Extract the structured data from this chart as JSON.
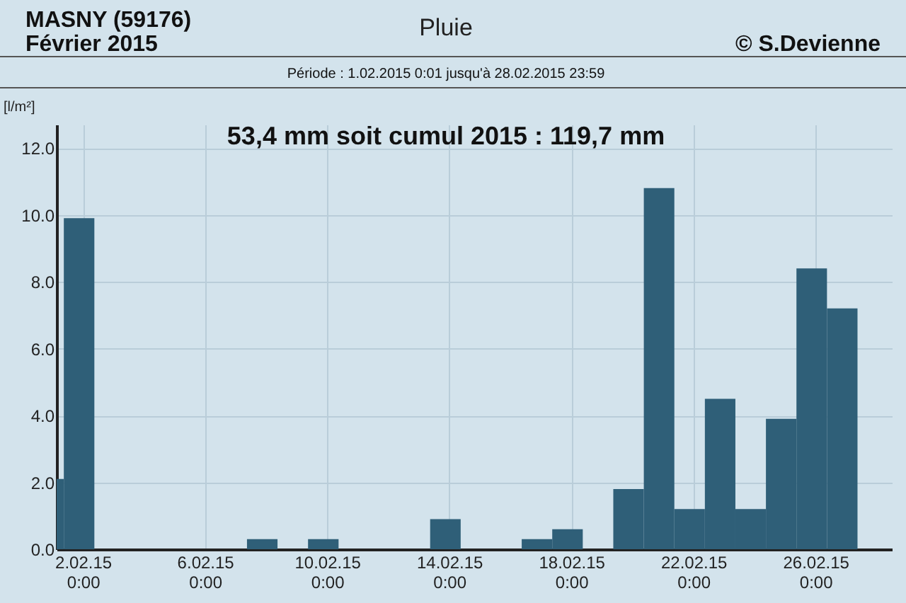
{
  "chart_data": {
    "type": "histogram",
    "title": "Pluie",
    "ylabel": "[l/m²]",
    "annotations": [
      "MASNY (59176)",
      "Février  2015",
      "© S.Devienne",
      "Période :  1.02.2015   0:01   jusqu'à  28.02.2015   23:59",
      "53,4 mm  soit cumul 2015 : 119,7 mm"
    ],
    "bins": [
      "2015-02-01T03:20",
      "2015-02-01T09:00",
      "2015-02-02T09:00",
      "2015-02-07T09:00",
      "2015-02-08T09:00",
      "2015-02-09T09:00",
      "2015-02-10T09:00",
      "2015-02-13T09:00",
      "2015-02-14T09:00",
      "2015-02-16T09:00",
      "2015-02-17T09:00",
      "2015-02-18T09:00",
      "2015-02-19T09:00",
      "2015-02-20T09:00",
      "2015-02-21T09:00",
      "2015-02-22T09:00",
      "2015-02-23T09:00",
      "2015-02-24T09:00",
      "2015-02-25T09:00",
      "2015-02-26T09:00",
      "2015-02-27T09:00"
    ],
    "values": [
      2.1,
      9.9,
      0,
      0.3,
      0,
      0.3,
      0,
      0.9,
      0,
      0.3,
      0.6,
      0,
      1.8,
      10.8,
      1.2,
      4.5,
      1.2,
      3.9,
      8.4,
      7.2
    ],
    "color": "#2f5f78",
    "xlim": [
      "2015-02-01T03:20",
      "2015-02-28T12:00"
    ],
    "xticks": [
      {
        "value": "2015-02-02T00:00",
        "label": "2.02.15\n0:00"
      },
      {
        "value": "2015-02-06T00:00",
        "label": "6.02.15\n0:00"
      },
      {
        "value": "2015-02-10T00:00",
        "label": "10.02.15\n0:00"
      },
      {
        "value": "2015-02-14T00:00",
        "label": "14.02.15\n0:00"
      },
      {
        "value": "2015-02-18T00:00",
        "label": "18.02.15\n0:00"
      },
      {
        "value": "2015-02-22T00:00",
        "label": "22.02.15\n0:00"
      },
      {
        "value": "2015-02-26T00:00",
        "label": "26.02.15\n0:00"
      }
    ],
    "ylim": [
      0,
      12.7
    ],
    "yticks": [
      {
        "value": 0,
        "label": "0.0"
      },
      {
        "value": 2,
        "label": "2.0"
      },
      {
        "value": 4,
        "label": "4.0"
      },
      {
        "value": 6,
        "label": "6.0"
      },
      {
        "value": 8,
        "label": "8.0"
      },
      {
        "value": 10,
        "label": "10.0"
      },
      {
        "value": 12,
        "label": "12.0"
      }
    ],
    "grid": true
  }
}
